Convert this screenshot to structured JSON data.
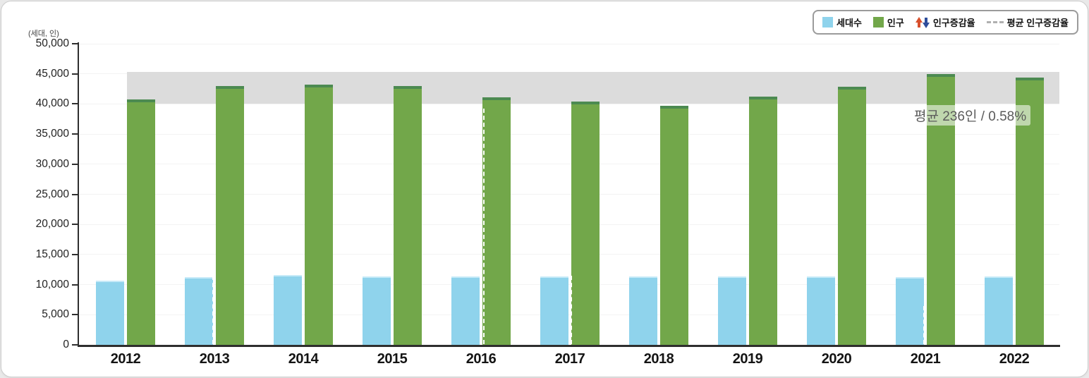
{
  "chart_data": {
    "type": "bar",
    "unit_label": "(세대, 인)",
    "categories": [
      "2012",
      "2013",
      "2014",
      "2015",
      "2016",
      "2017",
      "2018",
      "2019",
      "2020",
      "2021",
      "2022"
    ],
    "series": [
      {
        "name": "세대수",
        "color": "#8fd3ec",
        "edge_color": "#c6eaf8",
        "values": [
          10650,
          11250,
          11650,
          11300,
          11350,
          11300,
          11350,
          11400,
          11350,
          11250,
          11350
        ]
      },
      {
        "name": "인구",
        "color": "#72a74a",
        "cap_color": "#4c8a51",
        "values": [
          40700,
          43000,
          43200,
          42950,
          41050,
          40400,
          39650,
          41200,
          42800,
          45000,
          44400
        ]
      }
    ],
    "ylim": [
      0,
      50000
    ],
    "ytick_step": 5000,
    "yticks": [
      "0",
      "5,000",
      "10,000",
      "15,000",
      "20,000",
      "25,000",
      "30,000",
      "35,000",
      "40,000",
      "45,000",
      "50,000"
    ],
    "grid": true,
    "band": {
      "from": 40000,
      "to": 45300,
      "color": "#dcdcdc"
    },
    "annotation": "평균 236인 / 0.58%",
    "legend": {
      "position": "top-right",
      "items": [
        {
          "label": "세대수",
          "swatch": "square",
          "color": "#8fd3ec"
        },
        {
          "label": "인구",
          "swatch": "square",
          "color": "#72a74a"
        },
        {
          "label": "인구증감율",
          "swatch": "arrows",
          "up_color": "#d8502c",
          "down_color": "#2e4d9b"
        },
        {
          "label": "평균 인구증감율",
          "swatch": "dashed-line",
          "color": "#b0b0b0"
        }
      ]
    }
  }
}
